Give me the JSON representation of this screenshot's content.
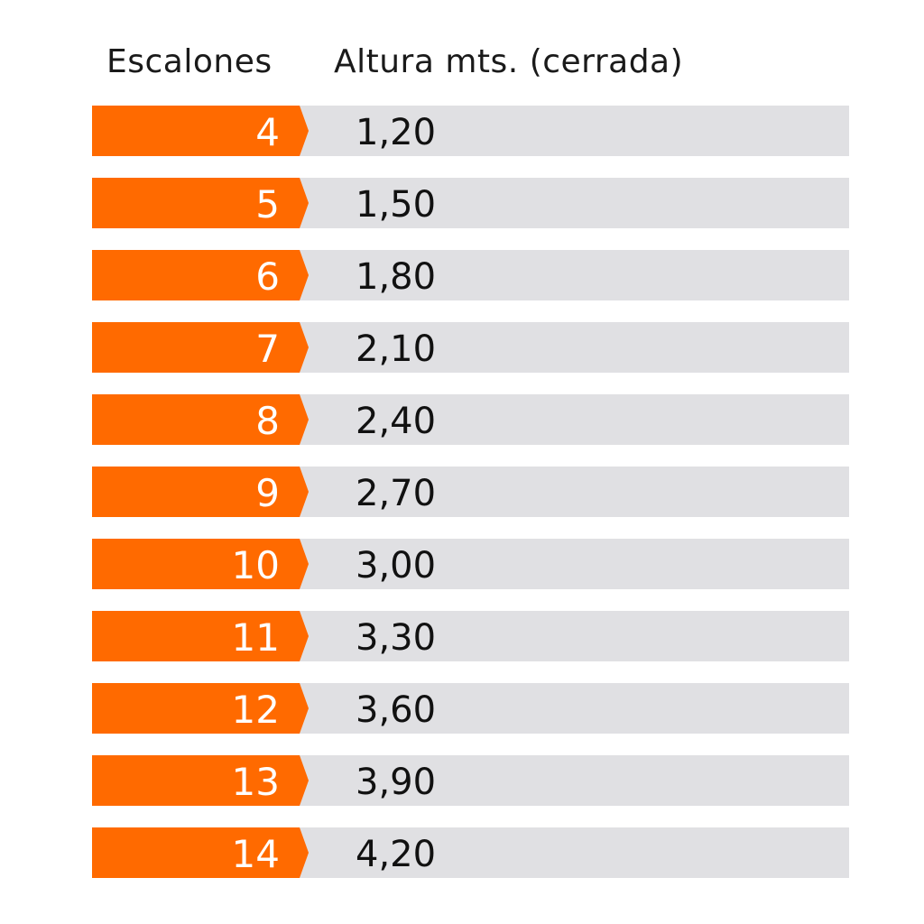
{
  "header": {
    "col1": "Escalones",
    "col2": "Altura mts. (cerrada)"
  },
  "colors": {
    "accent": "#ff6a00",
    "row_bg": "#e0e0e3"
  },
  "rows": [
    {
      "steps": "4",
      "height": "1,20"
    },
    {
      "steps": "5",
      "height": "1,50"
    },
    {
      "steps": "6",
      "height": "1,80"
    },
    {
      "steps": "7",
      "height": "2,10"
    },
    {
      "steps": "8",
      "height": "2,40"
    },
    {
      "steps": "9",
      "height": "2,70"
    },
    {
      "steps": "10",
      "height": "3,00"
    },
    {
      "steps": "11",
      "height": "3,30"
    },
    {
      "steps": "12",
      "height": "3,60"
    },
    {
      "steps": "13",
      "height": "3,90"
    },
    {
      "steps": "14",
      "height": "4,20"
    }
  ]
}
